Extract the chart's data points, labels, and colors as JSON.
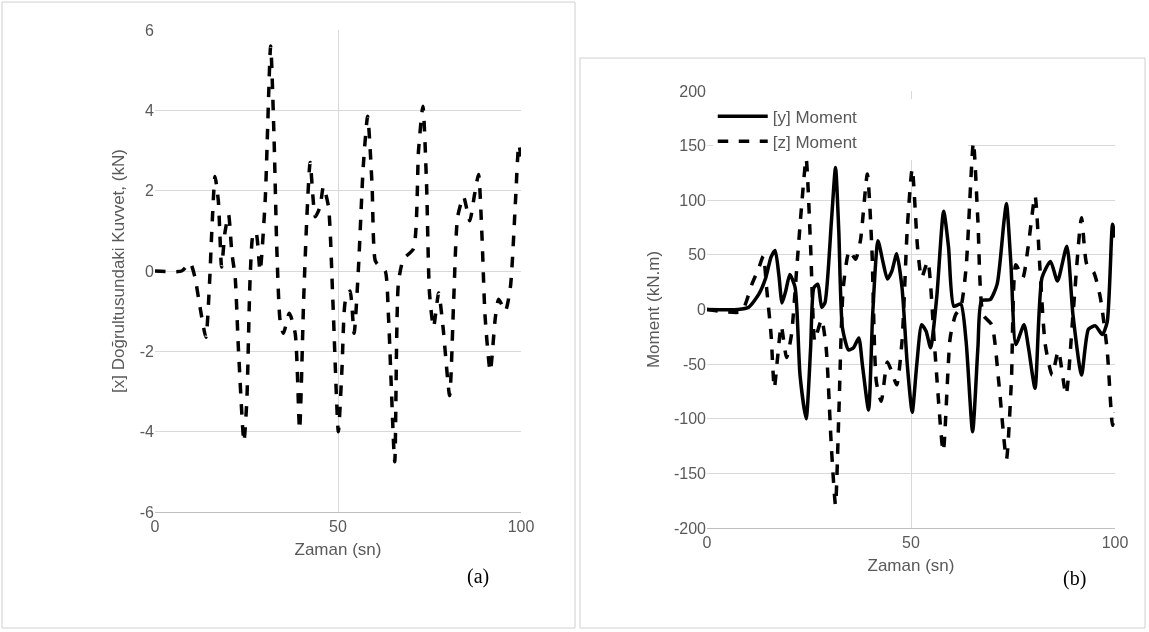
{
  "chart_data": [
    {
      "type": "line",
      "xlabel": "Zaman (sn)",
      "ylabel": "[x] Doğrultusundaki Kuvvet, (kN)",
      "annotations": [
        "(a)"
      ],
      "xlim": [
        0,
        100
      ],
      "xticks": [
        0,
        50,
        100
      ],
      "ylim": [
        -6,
        6
      ],
      "yticks": [
        -6,
        -4,
        -2,
        0,
        2,
        4,
        6
      ],
      "grid": true,
      "legend": false,
      "marker": "none",
      "series": [
        {
          "color": "#000000",
          "line_style": "dashed",
          "x": [
            0,
            7.3,
            9.6,
            10.9,
            12.3,
            13.9,
            14.9,
            15.5,
            16.4,
            17.3,
            18.2,
            19.1,
            20.1,
            21,
            21.9,
            22.8,
            24.3,
            25.1,
            26,
            26.9,
            27.6,
            28.7,
            30.1,
            31.6,
            32.5,
            33.3,
            34.2,
            35.1,
            36.7,
            38.3,
            39.5,
            40.6,
            41.5,
            42.4,
            43.8,
            45.1,
            46,
            47.4,
            48.6,
            50.1,
            51.1,
            52,
            53.3,
            54.4,
            55.6,
            56.9,
            58.1,
            59.3,
            60.2,
            61.5,
            62.9,
            63.8,
            65.5,
            66.5,
            67.9,
            70.6,
            72,
            73.2,
            74.2,
            75,
            76.1,
            77.5,
            78.7,
            80.5,
            81.6,
            82.7,
            84.3,
            86,
            87.3,
            88.4,
            89.3,
            90.2,
            91.6,
            93,
            93.9,
            95.7,
            97.1,
            98.5,
            99.4,
            100
          ],
          "values": [
            0,
            0,
            0.2,
            -0.15,
            -0.9,
            -1.65,
            -0.3,
            0.95,
            2.35,
            1.75,
            0.1,
            0.95,
            1.4,
            0.45,
            -0.15,
            -1.95,
            -4.25,
            -3.2,
            -0.15,
            0.95,
            0.95,
            0,
            1.75,
            5.6,
            3.4,
            0.5,
            -1.25,
            -1.55,
            -1.05,
            -1.55,
            -3.95,
            -0.75,
            1.35,
            2.7,
            1.35,
            1.6,
            2.1,
            1.6,
            -0.75,
            -4,
            -2.4,
            -0.75,
            -0.5,
            -1.55,
            0.1,
            2.6,
            3.85,
            2.15,
            0.25,
            0.1,
            0,
            -1.15,
            -4.75,
            -0.3,
            0.3,
            0.55,
            3,
            4.1,
            2.15,
            -0.55,
            -1.4,
            -0.55,
            -1.4,
            -3.1,
            -0.75,
            1.35,
            1.85,
            1.25,
            1.9,
            2.4,
            0.95,
            -1.15,
            -2.5,
            -1.15,
            -0.7,
            -1,
            -0.4,
            1.75,
            3.15,
            2.85
          ]
        }
      ]
    },
    {
      "type": "line",
      "xlabel": "Zaman (sn)",
      "ylabel": "Moment (kN.m)",
      "annotations": [
        "(b)"
      ],
      "xlim": [
        0,
        100
      ],
      "xticks": [
        0,
        50,
        100
      ],
      "ylim": [
        -200,
        200
      ],
      "yticks": [
        -200,
        -150,
        -100,
        -50,
        0,
        50,
        100,
        150,
        200
      ],
      "grid": true,
      "legend": "top",
      "marker": "none",
      "series": [
        {
          "name": "[y] Moment",
          "color": "#000000",
          "line_style": "solid",
          "x": [
            0,
            7.6,
            10.2,
            12.7,
            14.4,
            15.7,
            16.7,
            17.6,
            18.4,
            19.3,
            20.3,
            21.6,
            22.8,
            24.3,
            25.4,
            26.2,
            27.2,
            28.1,
            28.9,
            30.5,
            31.5,
            32.3,
            33.2,
            34.7,
            35.9,
            37.2,
            38.1,
            39.6,
            40.6,
            41.9,
            43.1,
            44.2,
            45.3,
            46.5,
            47.8,
            49.1,
            50.3,
            51.4,
            52.6,
            53.7,
            54.8,
            56.3,
            58,
            59.2,
            60.5,
            62.2,
            63.5,
            65.1,
            66.4,
            67.3,
            69.4,
            71.1,
            72.8,
            73.4,
            74.5,
            75.7,
            77.7,
            78.8,
            80.4,
            82.1,
            84.2,
            85.9,
            88.2,
            89.7,
            91.8,
            93.5,
            95.2,
            96.9,
            98.1,
            99.4,
            100
          ],
          "values": [
            0,
            0,
            2,
            14,
            29,
            48,
            54,
            32,
            6,
            17,
            32,
            20,
            -60,
            -100,
            -35,
            20,
            23,
            2,
            6,
            81,
            130,
            72,
            -17,
            -37,
            -35,
            -26,
            -51,
            -92,
            -5,
            63,
            44,
            28,
            35,
            51,
            20,
            -51,
            -94,
            -51,
            -14,
            -20,
            -35,
            11,
            90,
            57,
            3,
            5,
            -29,
            -112,
            -35,
            8,
            9,
            23,
            81,
            97,
            41,
            -32,
            -14,
            -35,
            -72,
            29,
            44,
            26,
            58,
            -5,
            -60,
            -18,
            -15,
            -23,
            -11,
            78,
            66
          ]
        },
        {
          "name": "[z] Moment",
          "color": "#000000",
          "line_style": "dashed",
          "x": [
            0,
            8.5,
            9.7,
            11,
            12.7,
            13.8,
            14.6,
            15.7,
            16.5,
            17.3,
            18.2,
            19.5,
            20.7,
            22,
            23.3,
            24.3,
            25.4,
            26.4,
            27.1,
            28.1,
            29.2,
            30.5,
            31.5,
            32.3,
            33.4,
            34.9,
            36.4,
            37.6,
            39.3,
            40.4,
            41.5,
            42.7,
            44.2,
            45.3,
            46.5,
            47.8,
            49.1,
            50.3,
            51.6,
            52.6,
            54.1,
            55.8,
            57.9,
            59.6,
            60.9,
            62.2,
            63.5,
            65.3,
            66.4,
            67.7,
            69.8,
            71.5,
            73.4,
            74.6,
            75.7,
            77.4,
            78.7,
            80.4,
            81.6,
            82.9,
            84.6,
            86.1,
            88,
            89.7,
            91.8,
            93.1,
            94.8,
            96.4,
            98.1,
            99.4,
            100
          ],
          "values": [
            0,
            -2,
            8,
            23,
            38,
            49,
            20,
            -23,
            -72,
            -44,
            -15,
            -44,
            -23,
            38,
            100,
            138,
            57,
            -29,
            -20,
            -9,
            -35,
            -127,
            -179,
            -97,
            20,
            54,
            46,
            63,
            124,
            57,
            -66,
            -84,
            -48,
            -57,
            -69,
            -29,
            75,
            129,
            57,
            29,
            44,
            -35,
            -130,
            -26,
            -5,
            2,
            38,
            153,
            81,
            -5,
            -14,
            -66,
            -137,
            -66,
            41,
            29,
            57,
            104,
            38,
            -32,
            -60,
            -38,
            -78,
            -5,
            84,
            41,
            34,
            11,
            -38,
            -106,
            -94
          ]
        }
      ]
    }
  ]
}
